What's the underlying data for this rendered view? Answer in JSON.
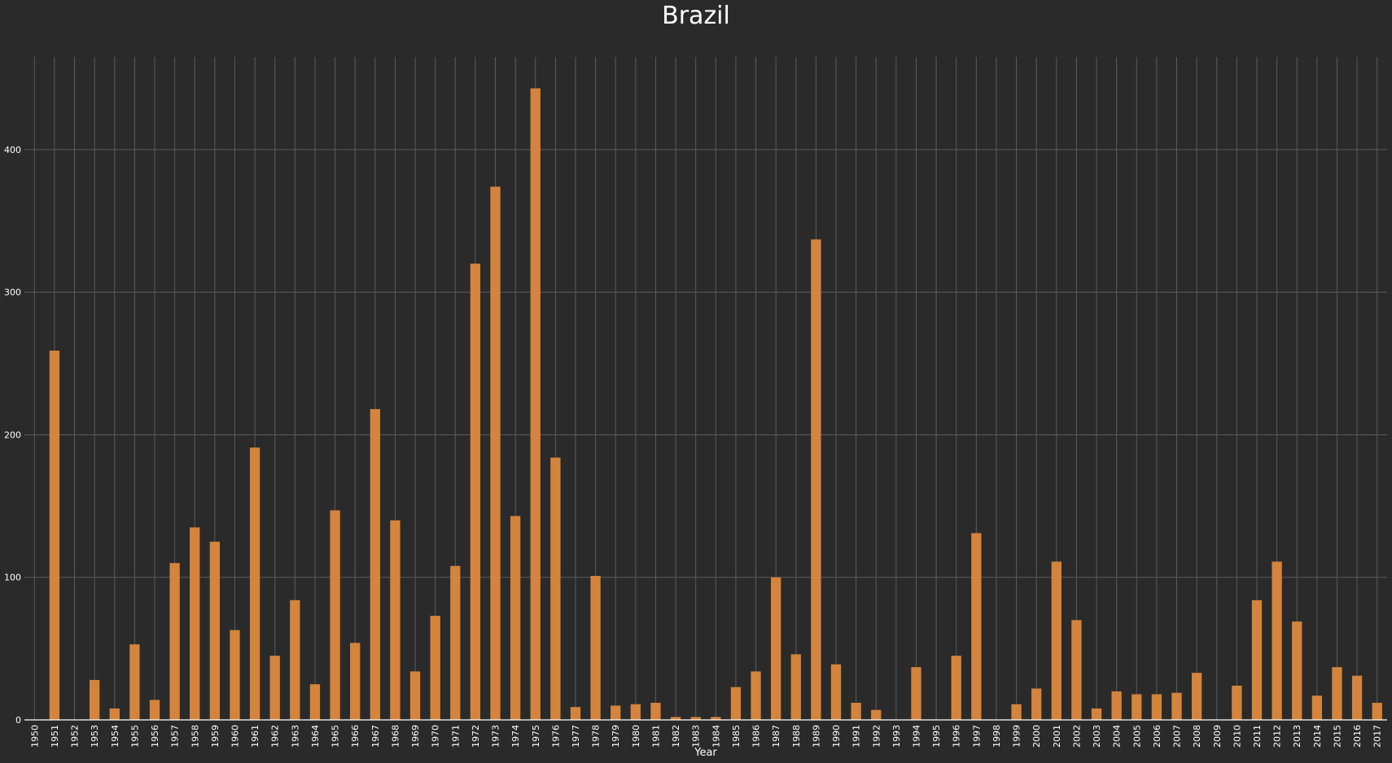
{
  "chart_data": {
    "type": "bar",
    "title": "Brazil",
    "xlabel": "Year",
    "ylabel": "",
    "ylim": [
      0,
      465
    ],
    "yticks": [
      0,
      100,
      200,
      300,
      400
    ],
    "grid": true,
    "bar_color": "#d4843d",
    "background": "#2a2a2a",
    "categories": [
      "1950",
      "1951",
      "1952",
      "1953",
      "1954",
      "1955",
      "1956",
      "1957",
      "1958",
      "1959",
      "1960",
      "1961",
      "1962",
      "1963",
      "1964",
      "1965",
      "1966",
      "1967",
      "1968",
      "1969",
      "1970",
      "1971",
      "1972",
      "1973",
      "1974",
      "1975",
      "1976",
      "1977",
      "1978",
      "1979",
      "1980",
      "1981",
      "1982",
      "1983",
      "1984",
      "1985",
      "1986",
      "1987",
      "1988",
      "1989",
      "1990",
      "1991",
      "1992",
      "1993",
      "1994",
      "1995",
      "1996",
      "1997",
      "1998",
      "1999",
      "2000",
      "2001",
      "2002",
      "2003",
      "2004",
      "2005",
      "2006",
      "2007",
      "2008",
      "2009",
      "2010",
      "2011",
      "2012",
      "2013",
      "2014",
      "2015",
      "2016",
      "2017"
    ],
    "values": [
      0,
      259,
      0,
      28,
      8,
      53,
      14,
      110,
      135,
      125,
      63,
      191,
      45,
      84,
      25,
      147,
      54,
      218,
      140,
      34,
      73,
      108,
      320,
      374,
      143,
      443,
      184,
      9,
      101,
      10,
      11,
      12,
      2,
      2,
      2,
      23,
      34,
      100,
      46,
      337,
      39,
      12,
      7,
      0,
      37,
      0,
      45,
      131,
      0,
      11,
      22,
      111,
      70,
      8,
      20,
      18,
      18,
      19,
      33,
      0,
      24,
      84,
      111,
      69,
      17,
      37,
      31,
      12
    ]
  }
}
